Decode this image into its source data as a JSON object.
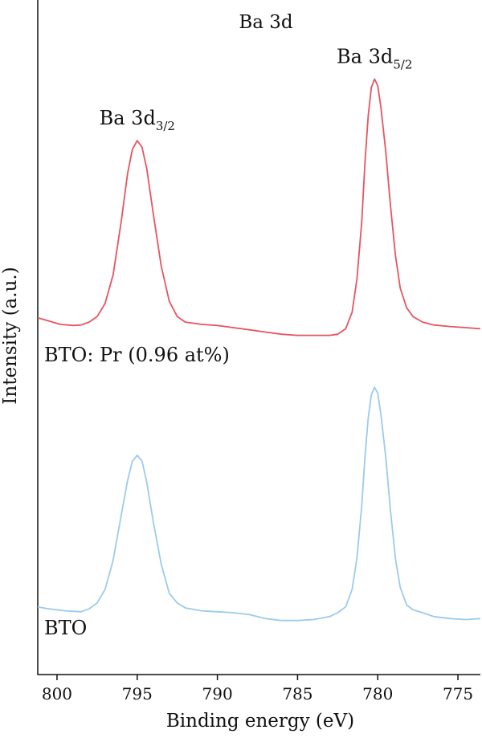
{
  "chart_data": {
    "type": "line",
    "title": "Ba 3d",
    "xlabel": "Binding energy (eV)",
    "ylabel": "Intensity (a.u.)",
    "xlim": [
      801.2,
      773.6
    ],
    "x_reversed": true,
    "y_ticks_shown": false,
    "xticks": [
      800,
      795,
      790,
      785,
      780,
      775
    ],
    "grid": false,
    "series": [
      {
        "name": "BTO: Pr (0.96 at%)",
        "color": "#e8545f",
        "offset": 1.0,
        "points": [
          [
            801.2,
            0.045
          ],
          [
            800.5,
            0.03
          ],
          [
            799.8,
            0.015
          ],
          [
            799.0,
            0.01
          ],
          [
            798.5,
            0.012
          ],
          [
            798.0,
            0.025
          ],
          [
            797.5,
            0.05
          ],
          [
            797.0,
            0.11
          ],
          [
            796.5,
            0.24
          ],
          [
            796.0,
            0.48
          ],
          [
            795.6,
            0.7
          ],
          [
            795.3,
            0.81
          ],
          [
            795.0,
            0.85
          ],
          [
            794.7,
            0.82
          ],
          [
            794.4,
            0.72
          ],
          [
            794.0,
            0.52
          ],
          [
            793.5,
            0.28
          ],
          [
            793.0,
            0.12
          ],
          [
            792.5,
            0.05
          ],
          [
            792.0,
            0.025
          ],
          [
            791.0,
            0.015
          ],
          [
            790.0,
            0.01
          ],
          [
            789.0,
            0.0
          ],
          [
            788.0,
            -0.01
          ],
          [
            787.0,
            -0.02
          ],
          [
            786.0,
            -0.03
          ],
          [
            785.0,
            -0.035
          ],
          [
            784.0,
            -0.035
          ],
          [
            783.0,
            -0.035
          ],
          [
            782.5,
            -0.03
          ],
          [
            782.0,
            -0.005
          ],
          [
            781.6,
            0.07
          ],
          [
            781.3,
            0.22
          ],
          [
            781.0,
            0.48
          ],
          [
            780.8,
            0.75
          ],
          [
            780.6,
            0.96
          ],
          [
            780.4,
            1.09
          ],
          [
            780.2,
            1.13
          ],
          [
            780.0,
            1.1
          ],
          [
            779.8,
            1.0
          ],
          [
            779.5,
            0.8
          ],
          [
            779.2,
            0.55
          ],
          [
            778.9,
            0.33
          ],
          [
            778.6,
            0.18
          ],
          [
            778.2,
            0.09
          ],
          [
            777.8,
            0.05
          ],
          [
            777.2,
            0.025
          ],
          [
            776.5,
            0.012
          ],
          [
            775.5,
            0.005
          ],
          [
            774.5,
            0.0
          ],
          [
            773.6,
            -0.005
          ]
        ]
      },
      {
        "name": "BTO",
        "color": "#9ccbeb",
        "offset": 0.0,
        "points": [
          [
            801.2,
            0.03
          ],
          [
            800.5,
            0.02
          ],
          [
            799.5,
            0.01
          ],
          [
            798.5,
            0.005
          ],
          [
            798.0,
            0.02
          ],
          [
            797.5,
            0.05
          ],
          [
            797.0,
            0.12
          ],
          [
            796.5,
            0.27
          ],
          [
            796.0,
            0.5
          ],
          [
            795.6,
            0.68
          ],
          [
            795.3,
            0.78
          ],
          [
            795.0,
            0.81
          ],
          [
            794.7,
            0.78
          ],
          [
            794.4,
            0.67
          ],
          [
            794.0,
            0.47
          ],
          [
            793.5,
            0.25
          ],
          [
            793.0,
            0.1
          ],
          [
            792.5,
            0.05
          ],
          [
            792.0,
            0.025
          ],
          [
            791.0,
            0.01
          ],
          [
            790.0,
            0.005
          ],
          [
            789.0,
            0.0
          ],
          [
            788.0,
            -0.01
          ],
          [
            787.0,
            -0.03
          ],
          [
            786.0,
            -0.04
          ],
          [
            785.0,
            -0.04
          ],
          [
            784.0,
            -0.035
          ],
          [
            783.0,
            -0.02
          ],
          [
            782.5,
            0.0
          ],
          [
            782.0,
            0.03
          ],
          [
            781.6,
            0.12
          ],
          [
            781.3,
            0.28
          ],
          [
            781.0,
            0.55
          ],
          [
            780.8,
            0.8
          ],
          [
            780.6,
            1.0
          ],
          [
            780.4,
            1.12
          ],
          [
            780.2,
            1.16
          ],
          [
            780.0,
            1.13
          ],
          [
            779.8,
            1.02
          ],
          [
            779.5,
            0.8
          ],
          [
            779.2,
            0.52
          ],
          [
            778.9,
            0.28
          ],
          [
            778.6,
            0.13
          ],
          [
            778.2,
            0.04
          ],
          [
            777.8,
            0.015
          ],
          [
            777.2,
            0.0
          ],
          [
            776.5,
            -0.02
          ],
          [
            775.5,
            -0.03
          ],
          [
            774.5,
            -0.035
          ],
          [
            773.6,
            -0.03
          ]
        ]
      }
    ],
    "annotations": [
      {
        "main": "Ba 3d",
        "sub": "3/2",
        "x": 795.0,
        "series": 0,
        "peak": 0.85
      },
      {
        "main": "Ba 3d",
        "sub": "5/2",
        "x": 780.2,
        "series": 0,
        "peak": 1.13
      }
    ]
  }
}
